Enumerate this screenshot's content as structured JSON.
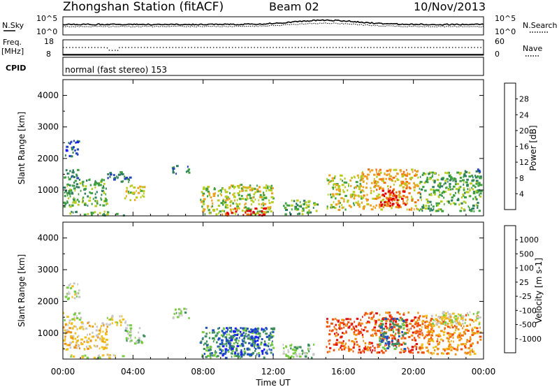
{
  "header": {
    "station": "Zhongshan Station (fitACF)",
    "beam": "Beam 02",
    "date": "10/Nov/2013"
  },
  "status_panel": {
    "nsky_label": "N.Sky",
    "nsearch_label": "N.Search",
    "noise_ticks": [
      "10^5",
      "10^0"
    ],
    "freq_label_line1": "Freq.",
    "freq_label_line2": "[MHz]",
    "freq_ticks": [
      "18",
      "8"
    ],
    "nave_label": "Nave",
    "nave_ticks": [
      "60",
      "0"
    ],
    "cpid_label": "CPID",
    "cpid_text": "normal (fast stereo) 153"
  },
  "x_axis": {
    "label": "Time UT",
    "ticks": [
      "00:00",
      "04:00",
      "08:00",
      "12:00",
      "16:00",
      "20:00",
      "00:00"
    ]
  },
  "colors": {
    "power_scale": [
      "#1a1aff",
      "#2244bb",
      "#2f7f5f",
      "#3fa040",
      "#b8cc20",
      "#f0a020",
      "#f07010",
      "#e00000"
    ],
    "velocity_scale": [
      "#e01010",
      "#f05010",
      "#f09010",
      "#f0c020",
      "#c8c8c8",
      "#78cc40",
      "#3f8f5f",
      "#2050c0",
      "#1a1aff"
    ]
  },
  "chart_data": [
    {
      "type": "heatmap",
      "name": "power",
      "xlabel": "",
      "ylabel": "Slant Range [km]",
      "xlim": [
        0,
        24
      ],
      "ylim": [
        180,
        4500
      ],
      "y_ticks": [
        1000,
        2000,
        3000,
        4000
      ],
      "colorbar": {
        "label": "Power [dB]",
        "range": [
          0,
          32
        ],
        "ticks": [
          4,
          8,
          12,
          16,
          20,
          24,
          28
        ]
      },
      "regions": [
        {
          "t0": 0.0,
          "t1": 1.0,
          "r0": 1400,
          "r1": 1700,
          "level": 2
        },
        {
          "t0": 0.1,
          "t1": 0.9,
          "r0": 2100,
          "r1": 2600,
          "level": 1
        },
        {
          "t0": 0.0,
          "t1": 2.5,
          "r0": 500,
          "r1": 1400,
          "level": 3
        },
        {
          "t0": 2.5,
          "t1": 3.8,
          "r0": 1250,
          "r1": 1600,
          "level": 2
        },
        {
          "t0": 3.5,
          "t1": 4.6,
          "r0": 700,
          "r1": 1200,
          "level": 4
        },
        {
          "t0": 0.2,
          "t1": 3.5,
          "r0": 220,
          "r1": 350,
          "level": 3
        },
        {
          "t0": 6.2,
          "t1": 7.2,
          "r0": 1500,
          "r1": 1800,
          "level": 2
        },
        {
          "t0": 7.8,
          "t1": 12.0,
          "r0": 250,
          "r1": 1200,
          "level": 4
        },
        {
          "t0": 9.0,
          "t1": 11.5,
          "r0": 220,
          "r1": 450,
          "level": 7
        },
        {
          "t0": 12.5,
          "t1": 14.5,
          "r0": 250,
          "r1": 700,
          "level": 3
        },
        {
          "t0": 15.0,
          "t1": 17.0,
          "r0": 400,
          "r1": 1500,
          "level": 4
        },
        {
          "t0": 17.0,
          "t1": 20.3,
          "r0": 400,
          "r1": 1700,
          "level": 5
        },
        {
          "t0": 18.0,
          "t1": 19.5,
          "r0": 500,
          "r1": 1100,
          "level": 7
        },
        {
          "t0": 20.3,
          "t1": 23.8,
          "r0": 350,
          "r1": 1600,
          "level": 3
        },
        {
          "t0": 22.8,
          "t1": 23.8,
          "r0": 1400,
          "r1": 1700,
          "level": 2
        }
      ]
    },
    {
      "type": "heatmap",
      "name": "velocity",
      "xlabel": "Time UT",
      "ylabel": "Slant Range [km]",
      "xlim": [
        0,
        24
      ],
      "ylim": [
        180,
        4500
      ],
      "y_ticks": [
        1000,
        2000,
        3000,
        4000
      ],
      "colorbar": {
        "label": "Velocity [m s-1]",
        "ticks": [
          "-1000",
          "-500",
          "-100",
          "-25",
          "25",
          "100",
          "500",
          "1000"
        ]
      },
      "regions": [
        {
          "t0": 0.0,
          "t1": 1.0,
          "r0": 1400,
          "r1": 1700,
          "level": 4
        },
        {
          "t0": 0.1,
          "t1": 0.9,
          "r0": 2100,
          "r1": 2600,
          "level": 4
        },
        {
          "t0": 0.0,
          "t1": 2.5,
          "r0": 500,
          "r1": 1400,
          "level": 3
        },
        {
          "t0": 2.5,
          "t1": 3.8,
          "r0": 1250,
          "r1": 1600,
          "level": 4
        },
        {
          "t0": 3.5,
          "t1": 4.6,
          "r0": 700,
          "r1": 1200,
          "level": 5
        },
        {
          "t0": 0.2,
          "t1": 3.5,
          "r0": 220,
          "r1": 350,
          "level": 4
        },
        {
          "t0": 6.2,
          "t1": 7.2,
          "r0": 1500,
          "r1": 1800,
          "level": 5
        },
        {
          "t0": 7.8,
          "t1": 12.0,
          "r0": 250,
          "r1": 1200,
          "level": 6
        },
        {
          "t0": 9.0,
          "t1": 11.5,
          "r0": 300,
          "r1": 1200,
          "level": 7
        },
        {
          "t0": 12.5,
          "t1": 14.5,
          "r0": 250,
          "r1": 700,
          "level": 5
        },
        {
          "t0": 15.0,
          "t1": 17.0,
          "r0": 400,
          "r1": 1500,
          "level": 1
        },
        {
          "t0": 17.0,
          "t1": 20.3,
          "r0": 400,
          "r1": 1700,
          "level": 1
        },
        {
          "t0": 18.0,
          "t1": 19.5,
          "r0": 500,
          "r1": 1500,
          "level": 6
        },
        {
          "t0": 20.3,
          "t1": 23.8,
          "r0": 350,
          "r1": 1600,
          "level": 2
        },
        {
          "t0": 21.0,
          "t1": 23.8,
          "r0": 1300,
          "r1": 1700,
          "level": 4
        }
      ]
    }
  ]
}
